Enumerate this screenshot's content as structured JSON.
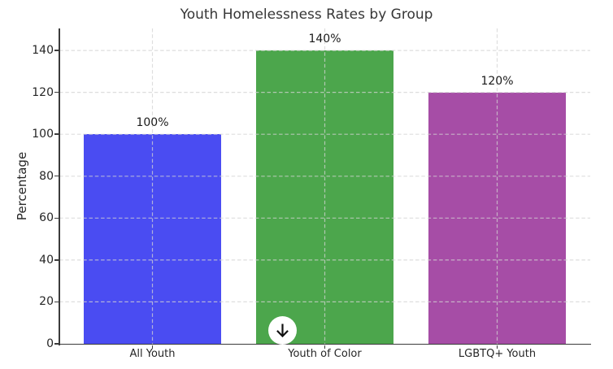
{
  "chart_data": {
    "type": "bar",
    "title": "Youth Homelessness Rates by Group",
    "xlabel": "",
    "ylabel": "Percentage",
    "categories": [
      "All Youth",
      "Youth of Color",
      "LGBTQ+ Youth"
    ],
    "values": [
      100,
      140,
      120
    ],
    "bar_labels": [
      "100%",
      "140%",
      "120%"
    ],
    "bar_colors": [
      "#4a4cf2",
      "#4ca64c",
      "#a64da6"
    ],
    "yticks": [
      0,
      20,
      40,
      60,
      80,
      100,
      120,
      140
    ],
    "ylim": [
      0,
      150.5
    ],
    "grid": true,
    "grid_style": "dashed",
    "legend_position": "none"
  },
  "overlay": {
    "scroll_indicator_icon": "down-arrow"
  },
  "colors": {
    "bar_blue": "#4a4cf2",
    "bar_green": "#4ca64c",
    "bar_purple": "#a64da6",
    "grid": "#d3d3d3",
    "spine": "#3b3b3b",
    "tick_text": "#262626",
    "title_text": "#363636",
    "background": "#ffffff",
    "indicator_background": "#ffffff",
    "indicator_arrow": "#111111"
  }
}
